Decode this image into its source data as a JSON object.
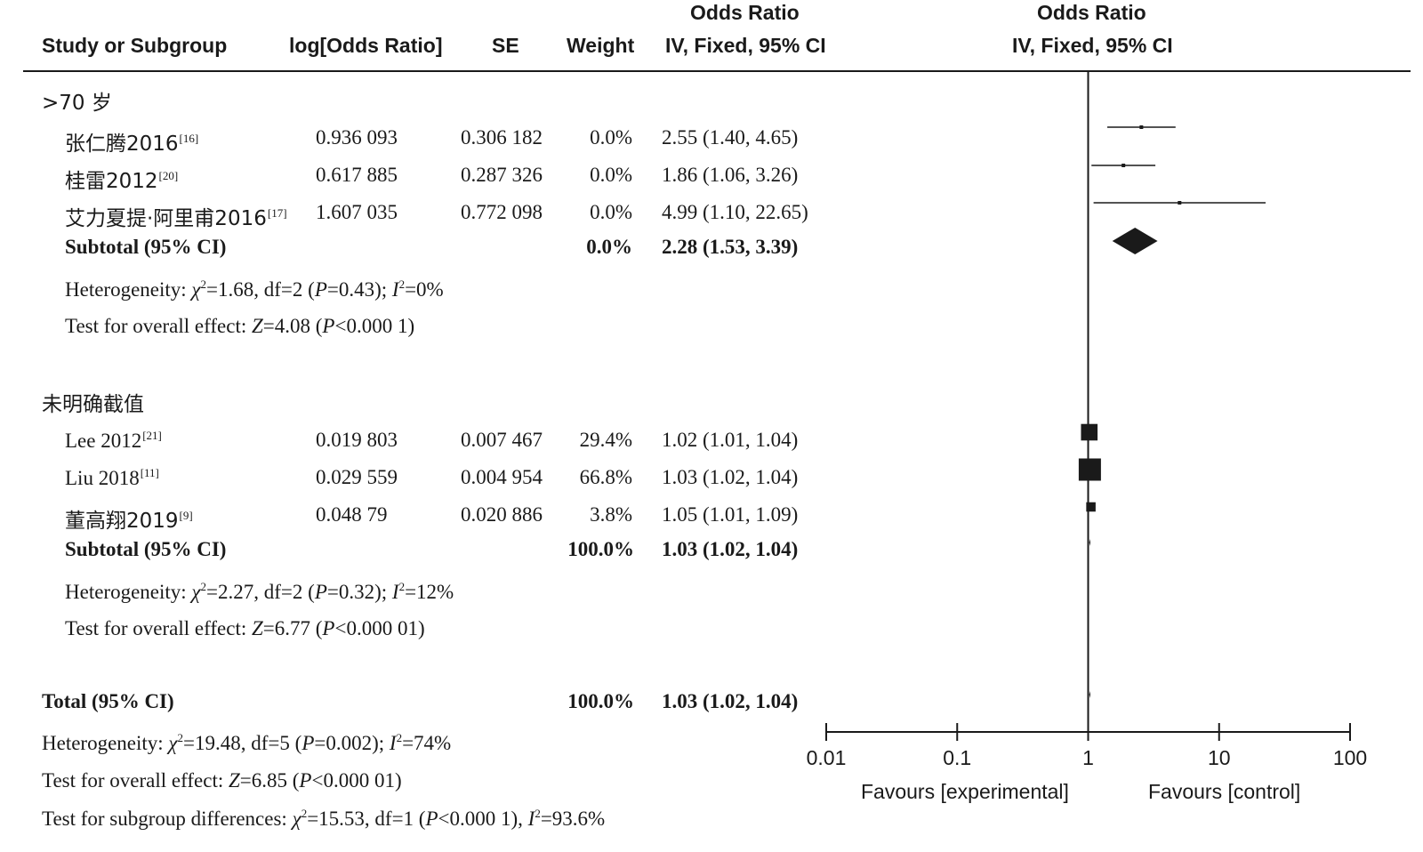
{
  "headers": {
    "study": "Study or Subgroup",
    "log_or": "log[Odds Ratio]",
    "se": "SE",
    "weight": "Weight",
    "or_col_line1": "Odds Ratio",
    "or_col_line2": "IV, Fixed, 95% CI",
    "plot_line1": "Odds Ratio",
    "plot_line2": "IV, Fixed, 95% CI"
  },
  "groups": [
    {
      "label": ">70 岁",
      "studies": [
        {
          "name": "张仁腾2016",
          "ref": "[16]",
          "log_or": "0.936 093",
          "se": "0.306 182",
          "weight": "0.0%",
          "ci": "2.55 (1.40, 4.65)"
        },
        {
          "name": "桂雷2012",
          "ref": "[20]",
          "log_or": "0.617 885",
          "se": "0.287 326",
          "weight": "0.0%",
          "ci": "1.86 (1.06, 3.26)"
        },
        {
          "name": "艾力夏提·阿里甫2016",
          "ref": "[17]",
          "log_or": "1.607 035",
          "se": "0.772 098",
          "weight": "0.0%",
          "ci": "4.99 (1.10, 22.65)"
        }
      ],
      "subtotal": {
        "label": "Subtotal (95% CI)",
        "weight": "0.0%",
        "ci": "2.28 (1.53, 3.39)"
      },
      "heterogeneity": {
        "prefix": "Heterogeneity: ",
        "chi": "χ",
        "chi_sup": "2",
        "chi_val": "=1.68, df=2 (",
        "p": "P",
        "p_val": "=0.43); ",
        "i": "I",
        "i_sup": "2",
        "i_val": "=0%"
      },
      "overall": {
        "prefix": "Test for overall effect: ",
        "z": "Z",
        "z_val": "=4.08 (",
        "p": "P",
        "p_val": "<0.000 1)"
      }
    },
    {
      "label": "未明确截值",
      "studies": [
        {
          "name": "Lee 2012",
          "ref": "[21]",
          "log_or": "0.019 803",
          "se": "0.007 467",
          "weight": "29.4%",
          "ci": "1.02 (1.01, 1.04)"
        },
        {
          "name": "Liu 2018",
          "ref": "[11]",
          "log_or": "0.029 559",
          "se": "0.004 954",
          "weight": "66.8%",
          "ci": "1.03 (1.02, 1.04)"
        },
        {
          "name": "董高翔2019",
          "ref": "[9]",
          "log_or": "0.048 79",
          "se": "0.020 886",
          "weight": "3.8%",
          "ci": "1.05 (1.01, 1.09)"
        }
      ],
      "subtotal": {
        "label": "Subtotal (95% CI)",
        "weight": "100.0%",
        "ci": "1.03 (1.02, 1.04)"
      },
      "heterogeneity": {
        "prefix": "Heterogeneity: ",
        "chi": "χ",
        "chi_sup": "2",
        "chi_val": "=2.27, df=2 (",
        "p": "P",
        "p_val": "=0.32); ",
        "i": "I",
        "i_sup": "2",
        "i_val": "=12%"
      },
      "overall": {
        "prefix": "Test for overall effect: ",
        "z": "Z",
        "z_val": "=6.77 (",
        "p": "P",
        "p_val": "<0.000 01)"
      }
    }
  ],
  "total": {
    "label": "Total (95% CI)",
    "weight": "100.0%",
    "ci": "1.03 (1.02, 1.04)",
    "heterogeneity": {
      "prefix": "Heterogeneity: ",
      "chi": "χ",
      "chi_sup": "2",
      "chi_val": "=19.48, df=5 (",
      "p": "P",
      "p_val": "=0.002); ",
      "i": "I",
      "i_sup": "2",
      "i_val": "=74%"
    },
    "overall": {
      "prefix": "Test for overall effect: ",
      "z": "Z",
      "z_val": "=6.85 (",
      "p": "P",
      "p_val": "<0.000 01)"
    },
    "subgroup_diff": {
      "prefix": "Test for subgroup differences: ",
      "chi": "χ",
      "chi_sup": "2",
      "chi_val": "=15.53, df=1 (",
      "p": "P",
      "p_val": "<0.000 1), ",
      "i": "I",
      "i_sup": "2",
      "i_val": "=93.6%"
    }
  },
  "chart_data": {
    "type": "forest",
    "scale": "log",
    "x_ticks": [
      0.01,
      0.1,
      1,
      10,
      100
    ],
    "x_tick_labels": [
      "0.01",
      "0.1",
      "1",
      "10",
      "100"
    ],
    "xlim": [
      0.01,
      100
    ],
    "null_line": 1,
    "left_label": "Favours [experimental]",
    "right_label": "Favours [control]",
    "studies": [
      {
        "name": "张仁腾2016",
        "or": 2.55,
        "lo": 1.4,
        "hi": 4.65,
        "weight": 0.0
      },
      {
        "name": "桂雷2012",
        "or": 1.86,
        "lo": 1.06,
        "hi": 3.26,
        "weight": 0.0
      },
      {
        "name": "艾力夏提·阿里甫2016",
        "or": 4.99,
        "lo": 1.1,
        "hi": 22.65,
        "weight": 0.0
      },
      {
        "name": "Lee 2012",
        "or": 1.02,
        "lo": 1.01,
        "hi": 1.04,
        "weight": 29.4
      },
      {
        "name": "Liu 2018",
        "or": 1.03,
        "lo": 1.02,
        "hi": 1.04,
        "weight": 66.8
      },
      {
        "name": "董高翔2019",
        "or": 1.05,
        "lo": 1.01,
        "hi": 1.09,
        "weight": 3.8
      }
    ],
    "diamonds": [
      {
        "name": "Subtotal >70 岁",
        "or": 2.28,
        "lo": 1.53,
        "hi": 3.39
      },
      {
        "name": "Subtotal 未明确截值",
        "or": 1.03,
        "lo": 1.02,
        "hi": 1.04
      },
      {
        "name": "Total",
        "or": 1.03,
        "lo": 1.02,
        "hi": 1.04
      }
    ]
  }
}
